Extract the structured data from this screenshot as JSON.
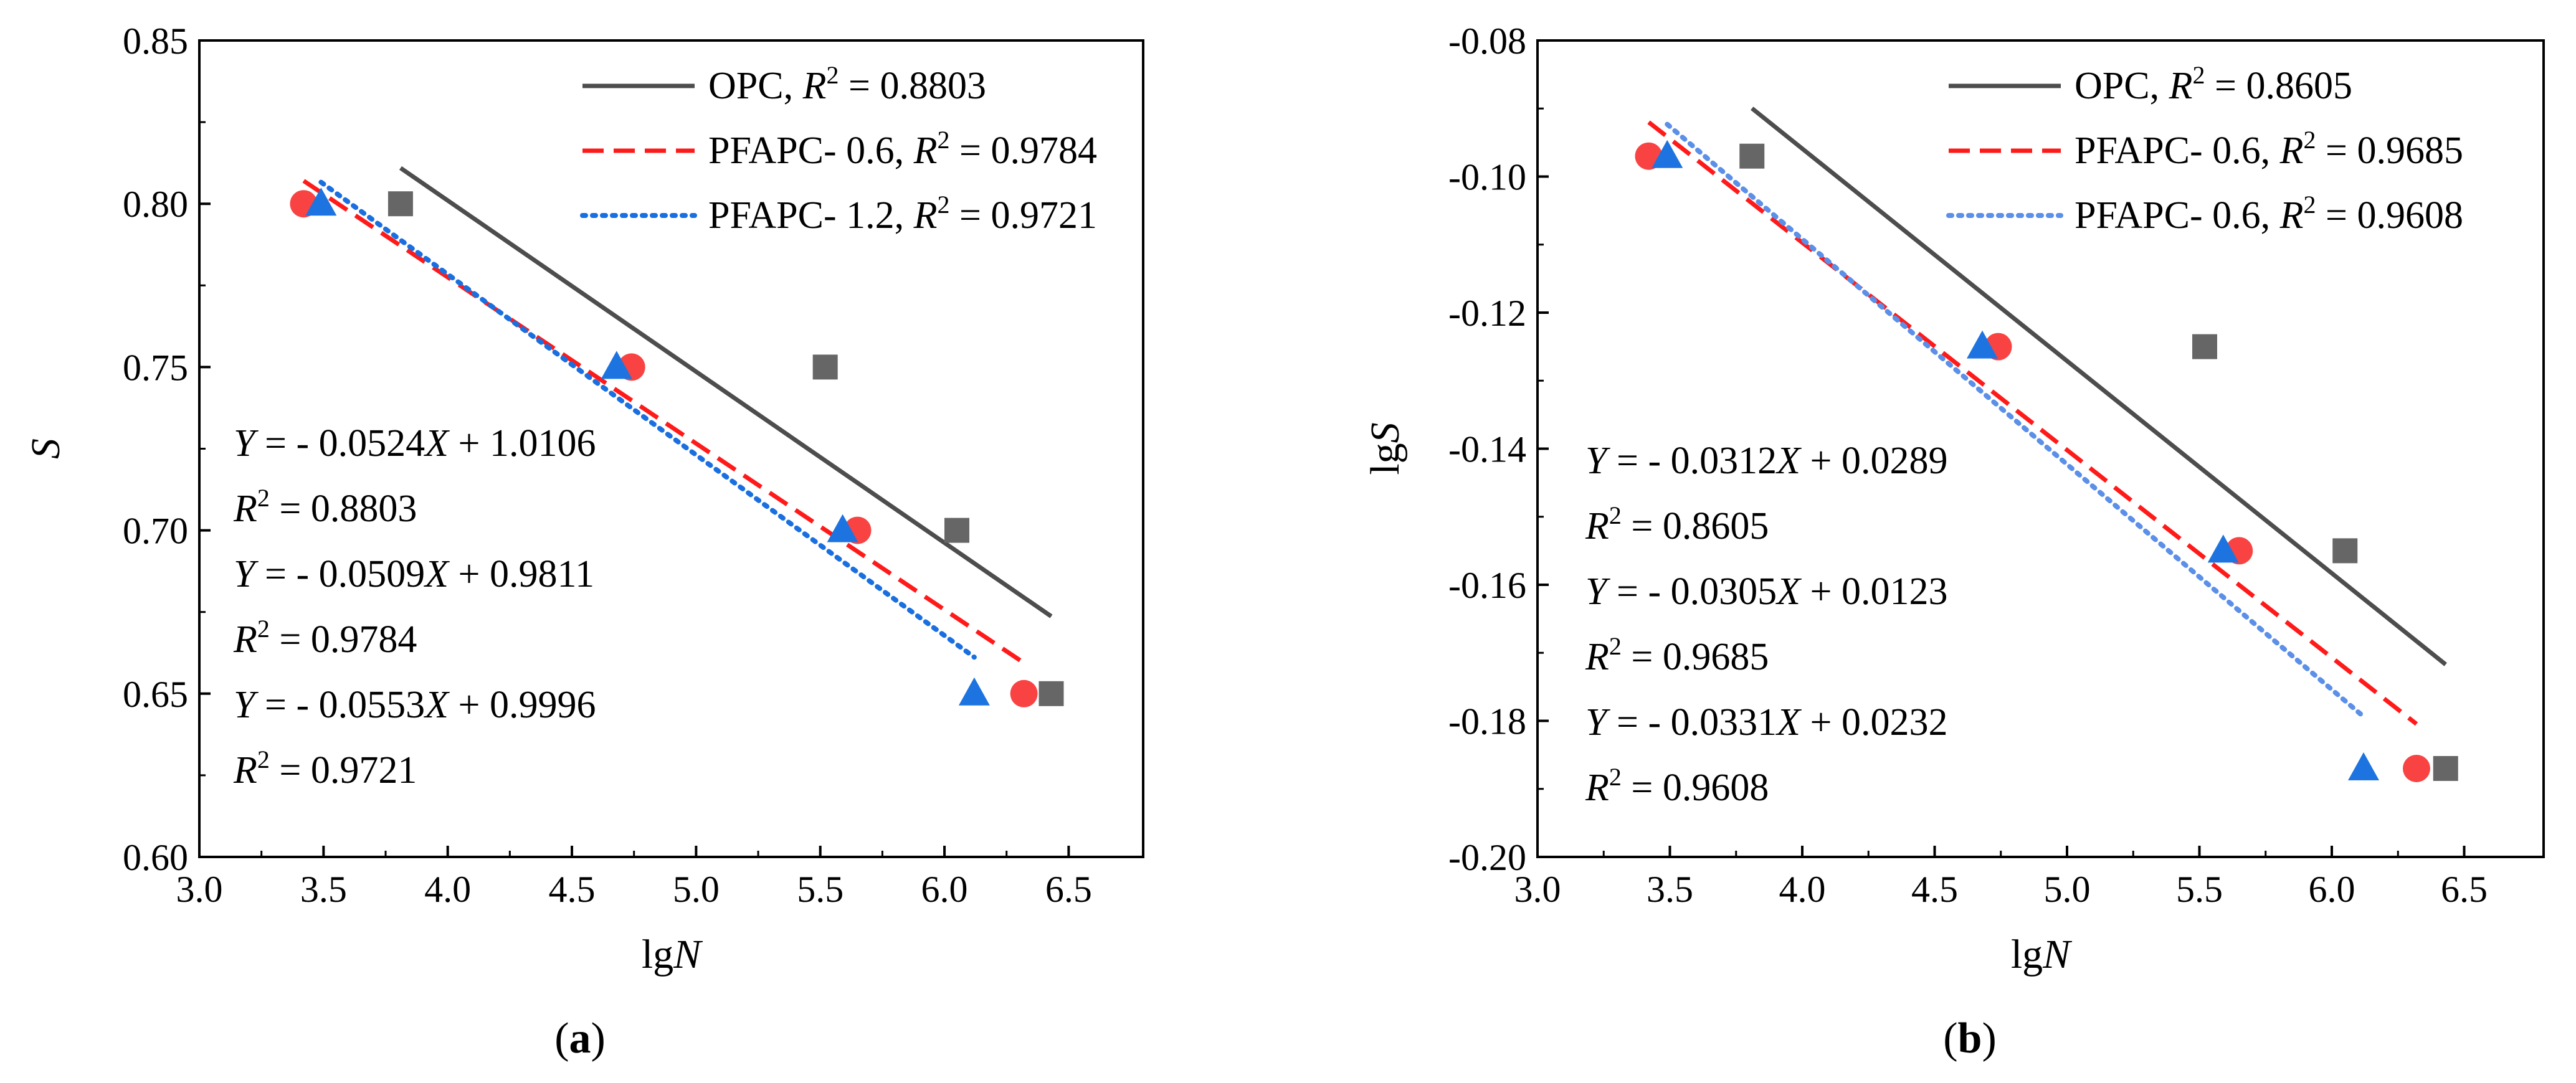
{
  "colors": {
    "opc": "#4d4d4d",
    "pfapc06": "#ff1a1a",
    "pfapc12": "#1a6fe0",
    "pfapc12_line": "#5b8fe8",
    "marker_opc": "#666666",
    "marker_pfapc06": "#f94343",
    "marker_pfapc12": "#1d74e0"
  },
  "chart_data": [
    {
      "id": "a",
      "type": "scatter",
      "caption": {
        "open": "(",
        "letter": "a",
        "close": ")"
      },
      "xlabel": {
        "main": "lg",
        "italic": "N"
      },
      "ylabel": {
        "italic": "S",
        "main": ""
      },
      "xlim": [
        3.0,
        6.8
      ],
      "ylim": [
        0.6,
        0.85
      ],
      "xticks": [
        3.0,
        3.5,
        4.0,
        4.5,
        5.0,
        5.5,
        6.0,
        6.5
      ],
      "xtick_labels": [
        "3.0",
        "3.5",
        "4.0",
        "4.5",
        "5.0",
        "5.5",
        "6.0",
        "6.5"
      ],
      "yticks": [
        0.6,
        0.65,
        0.7,
        0.75,
        0.8,
        0.85
      ],
      "ytick_labels": [
        "0.60",
        "0.65",
        "0.70",
        "0.75",
        "0.80",
        "0.85"
      ],
      "series": [
        {
          "name": "OPC",
          "marker": "square",
          "line": "solid",
          "color_key": "opc",
          "marker_color_key": "marker_opc",
          "x": [
            3.81,
            5.52,
            6.05,
            6.43
          ],
          "y": [
            0.8,
            0.75,
            0.7,
            0.65
          ],
          "fit": {
            "slope": -0.0524,
            "intercept": 1.0106,
            "x_range": [
              3.81,
              6.43
            ]
          }
        },
        {
          "name": "PFAPC- 0.6",
          "marker": "circle",
          "line": "dashed",
          "color_key": "pfapc06",
          "marker_color_key": "marker_pfapc06",
          "x": [
            3.42,
            4.74,
            5.65,
            6.32
          ],
          "y": [
            0.8,
            0.75,
            0.7,
            0.65
          ],
          "fit": {
            "slope": -0.0509,
            "intercept": 0.9811,
            "x_range": [
              3.42,
              6.32
            ]
          }
        },
        {
          "name": "PFAPC- 1.2",
          "marker": "triangle",
          "line": "dotted",
          "color_key": "pfapc12",
          "marker_color_key": "marker_pfapc12",
          "x": [
            3.49,
            4.68,
            5.59,
            6.12
          ],
          "y": [
            0.8,
            0.75,
            0.7,
            0.65
          ],
          "fit": {
            "slope": -0.0553,
            "intercept": 0.9996,
            "x_range": [
              3.49,
              6.12
            ]
          }
        }
      ],
      "legend": [
        {
          "name": "OPC, ",
          "r2": " = 0.8803",
          "style": "solid",
          "color_key": "opc"
        },
        {
          "name": "PFAPC- 0.6, ",
          "r2": " = 0.9784",
          "style": "dashed",
          "color_key": "pfapc06"
        },
        {
          "name": "PFAPC- 1.2, ",
          "r2": " = 0.9721",
          "style": "dotted",
          "color_key": "pfapc12"
        }
      ],
      "equations": [
        {
          "kind": "eq",
          "coef": " = - 0.0524",
          "rest": " + 1.0106"
        },
        {
          "kind": "r2",
          "value": " = 0.8803"
        },
        {
          "kind": "eq",
          "coef": " = - 0.0509",
          "rest": " + 0.9811"
        },
        {
          "kind": "r2",
          "value": " = 0.9784"
        },
        {
          "kind": "eq",
          "coef": " = - 0.0553",
          "rest": " + 0.9996"
        },
        {
          "kind": "r2",
          "value": " = 0.9721"
        }
      ]
    },
    {
      "id": "b",
      "type": "scatter",
      "caption": {
        "open": "(",
        "letter": "b",
        "close": ")"
      },
      "xlabel": {
        "main": "lg",
        "italic": "N"
      },
      "ylabel": {
        "italic": "S",
        "main": "lg"
      },
      "xlim": [
        3.0,
        6.8
      ],
      "ylim": [
        -0.2,
        -0.08
      ],
      "xticks": [
        3.0,
        3.5,
        4.0,
        4.5,
        5.0,
        5.5,
        6.0,
        6.5
      ],
      "xtick_labels": [
        "3.0",
        "3.5",
        "4.0",
        "4.5",
        "5.0",
        "5.5",
        "6.0",
        "6.5"
      ],
      "yticks": [
        -0.2,
        -0.18,
        -0.16,
        -0.14,
        -0.12,
        -0.1,
        -0.08
      ],
      "ytick_labels": [
        "-0.20",
        "-0.18",
        "-0.16",
        "-0.14",
        "-0.12",
        "-0.10",
        "-0.08"
      ],
      "series": [
        {
          "name": "OPC",
          "marker": "square",
          "line": "solid",
          "color_key": "opc",
          "marker_color_key": "marker_opc",
          "x": [
            3.81,
            5.52,
            6.05,
            6.43
          ],
          "y": [
            -0.097,
            -0.125,
            -0.155,
            -0.187
          ],
          "fit": {
            "slope": -0.0312,
            "intercept": 0.0289,
            "x_range": [
              3.81,
              6.43
            ]
          }
        },
        {
          "name": "PFAPC- 0.6",
          "marker": "circle",
          "line": "dashed",
          "color_key": "pfapc06",
          "marker_color_key": "marker_pfapc06",
          "x": [
            3.42,
            4.74,
            5.65,
            6.32
          ],
          "y": [
            -0.097,
            -0.125,
            -0.155,
            -0.187
          ],
          "fit": {
            "slope": -0.0305,
            "intercept": 0.0123,
            "x_range": [
              3.42,
              6.32
            ]
          }
        },
        {
          "name": "PFAPC- 0.6",
          "marker": "triangle",
          "line": "dotted",
          "color_key": "pfapc12_line",
          "marker_color_key": "marker_pfapc12",
          "x": [
            3.49,
            4.68,
            5.59,
            6.12
          ],
          "y": [
            -0.097,
            -0.125,
            -0.155,
            -0.187
          ],
          "fit": {
            "slope": -0.0331,
            "intercept": 0.0232,
            "x_range": [
              3.49,
              6.12
            ]
          }
        }
      ],
      "legend": [
        {
          "name": "OPC, ",
          "r2": " = 0.8605",
          "style": "solid",
          "color_key": "opc"
        },
        {
          "name": "PFAPC- 0.6, ",
          "r2": " = 0.9685",
          "style": "dashed",
          "color_key": "pfapc06"
        },
        {
          "name": "PFAPC- 0.6, ",
          "r2": " = 0.9608",
          "style": "dotted",
          "color_key": "pfapc12_line"
        }
      ],
      "equations": [
        {
          "kind": "eq",
          "coef": " = - 0.0312",
          "rest": " + 0.0289"
        },
        {
          "kind": "r2",
          "value": " = 0.8605"
        },
        {
          "kind": "eq",
          "coef": " = - 0.0305",
          "rest": " + 0.0123"
        },
        {
          "kind": "r2",
          "value": " = 0.9685"
        },
        {
          "kind": "eq",
          "coef": " = - 0.0331",
          "rest": " + 0.0232"
        },
        {
          "kind": "r2",
          "value": " = 0.9608"
        }
      ]
    }
  ]
}
